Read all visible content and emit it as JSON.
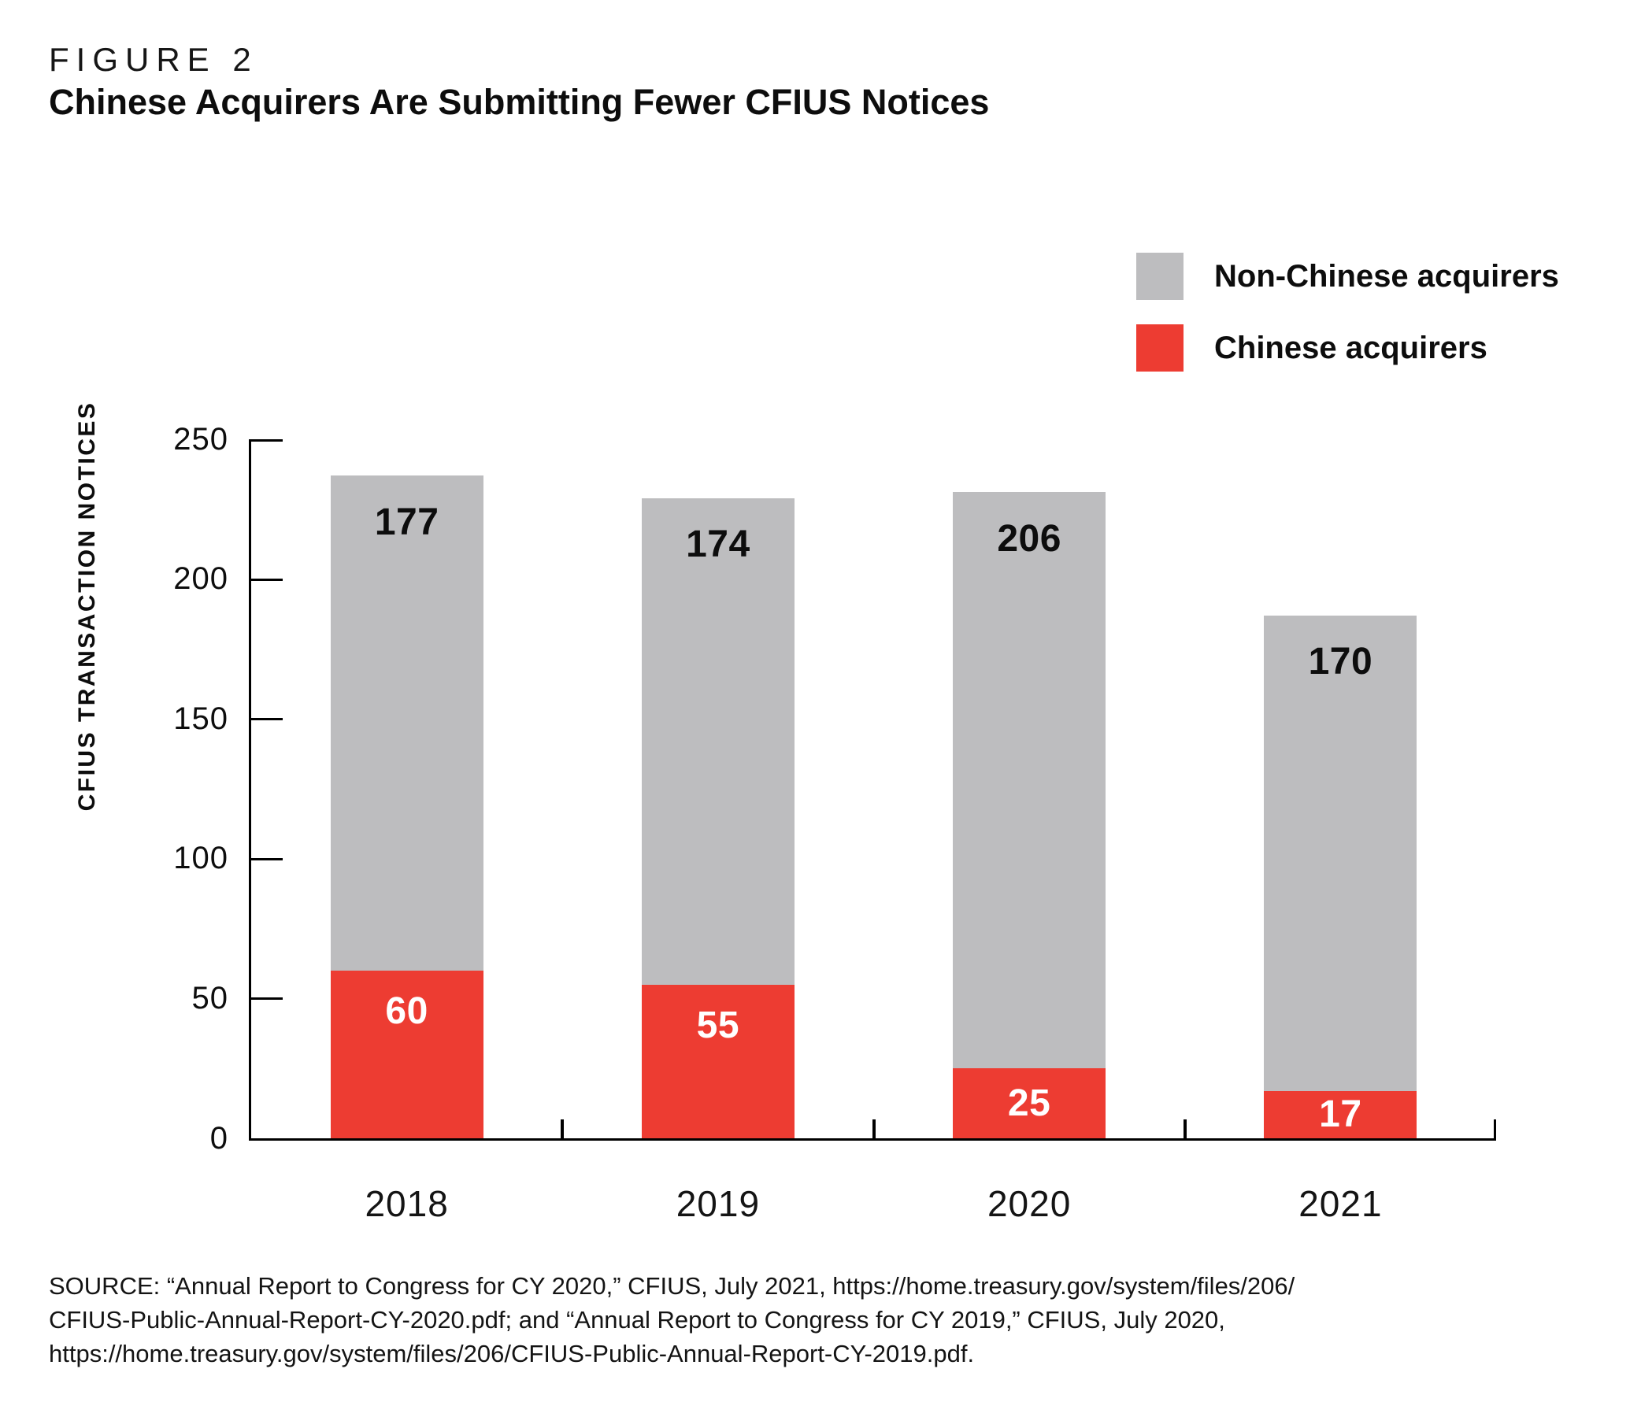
{
  "header": {
    "figure_label": "FIGURE 2",
    "title": "Chinese Acquirers Are Submitting Fewer CFIUS Notices"
  },
  "legend": {
    "items": [
      {
        "label": "Non-Chinese acquirers",
        "color": "#bdbdbf"
      },
      {
        "label": "Chinese acquirers",
        "color": "#ed3c32"
      }
    ]
  },
  "chart_data": {
    "type": "bar",
    "stacked": true,
    "title": "Chinese Acquirers Are Submitting Fewer CFIUS Notices",
    "categories": [
      "2018",
      "2019",
      "2020",
      "2021"
    ],
    "series": [
      {
        "name": "Chinese acquirers",
        "color": "#ed3c32",
        "values": [
          60,
          55,
          25,
          17
        ]
      },
      {
        "name": "Non-Chinese acquirers",
        "color": "#bdbdbf",
        "values": [
          177,
          174,
          206,
          170
        ]
      }
    ],
    "totals": [
      237,
      229,
      231,
      187
    ],
    "xlabel": "",
    "ylabel": "CFIUS TRANSACTION NOTICES",
    "ylim": [
      0,
      250
    ],
    "yticks": [
      0,
      50,
      100,
      150,
      200,
      250
    ],
    "grid": false,
    "legend_position": "top-right",
    "value_labels_shown": true
  },
  "colors": {
    "chinese": "#ed3c32",
    "non_chinese": "#bdbdbf",
    "axis": "#000000"
  },
  "source_lines": [
    "SOURCE: “Annual Report to Congress for CY 2020,” CFIUS, July 2021, https://home.treasury.gov/system/files/206/",
    "CFIUS-Public-Annual-Report-CY-2020.pdf; and “Annual Report to Congress for CY 2019,” CFIUS, July 2020,",
    "https://home.treasury.gov/system/files/206/CFIUS-Public-Annual-Report-CY-2019.pdf."
  ]
}
